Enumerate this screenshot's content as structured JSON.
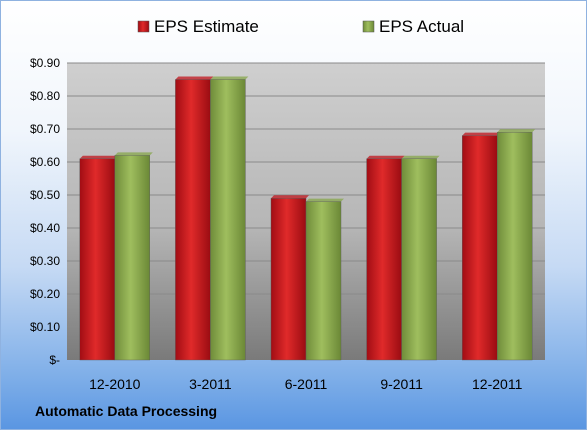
{
  "chart_data": {
    "type": "bar",
    "categories": [
      "12-2010",
      "3-2011",
      "6-2011",
      "9-2011",
      "12-2011"
    ],
    "series": [
      {
        "name": "EPS Estimate",
        "color": "#c0141c",
        "values": [
          0.61,
          0.85,
          0.49,
          0.61,
          0.68
        ]
      },
      {
        "name": "EPS Actual",
        "color": "#86a64a",
        "values": [
          0.62,
          0.85,
          0.48,
          0.61,
          0.69
        ]
      }
    ],
    "yticks": [
      "$-",
      "$0.10",
      "$0.20",
      "$0.30",
      "$0.40",
      "$0.50",
      "$0.60",
      "$0.70",
      "$0.80",
      "$0.90"
    ],
    "ylim": [
      0,
      0.9
    ],
    "ytick_step": 0.1,
    "legend_position": "top",
    "grid": true
  },
  "caption": "Automatic Data Processing"
}
